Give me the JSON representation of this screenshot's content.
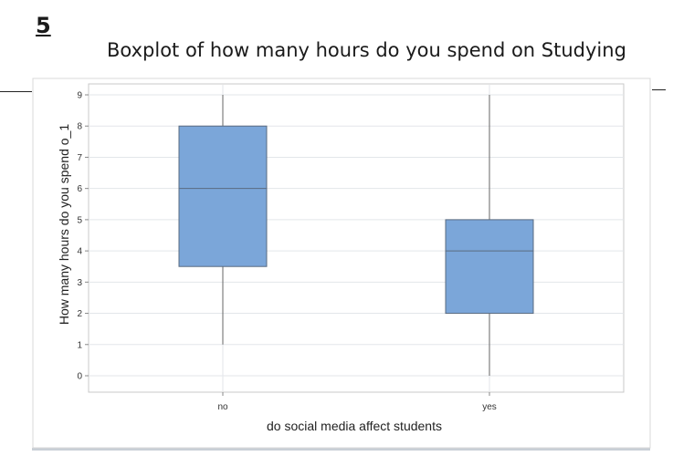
{
  "page": {
    "number": "5"
  },
  "chart_data": {
    "type": "boxplot",
    "title": "Boxplot of how many hours do you spend on Studying",
    "xlabel": "do social media affect students",
    "ylabel": "How many hours do you spend o_1",
    "categories": [
      "no",
      "yes"
    ],
    "boxes": [
      {
        "category": "no",
        "min": 1,
        "q1": 3.5,
        "median": 6,
        "q3": 8,
        "max": 9
      },
      {
        "category": "yes",
        "min": 0,
        "q1": 2,
        "median": 4,
        "q3": 5,
        "max": 9
      }
    ],
    "ylim": [
      0,
      9
    ],
    "yticks": [
      0,
      1,
      2,
      3,
      4,
      5,
      6,
      7,
      8,
      9
    ],
    "grid": true,
    "colors": {
      "box_fill": "#7ba6d9",
      "box_stroke": "#5a6b80",
      "grid": "#e3e6ea",
      "frame": "#c8c8c8"
    }
  }
}
